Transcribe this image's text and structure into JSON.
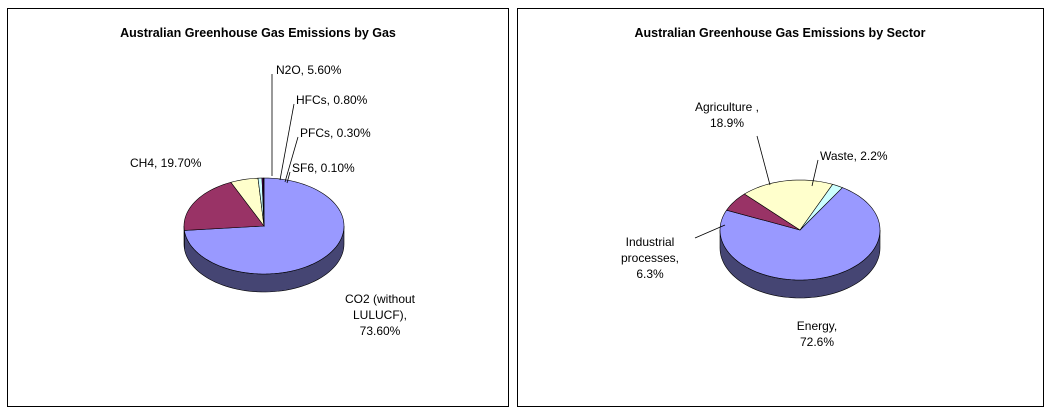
{
  "chart_data": [
    {
      "type": "pie",
      "title": "Australian Greenhouse Gas Emissions by Gas",
      "values": [
        73.6,
        19.7,
        5.6,
        0.8,
        0.3,
        0.1
      ],
      "value_labels": [
        "CO2 (without LULUCF), 73.60%",
        "CH4, 19.70%",
        "N2O, 5.60%",
        "HFCs, 0.80%",
        "PFCs, 0.30%",
        "SF6, 0.10%"
      ],
      "colors": [
        "#9999ff",
        "#993366",
        "#ffffcc",
        "#ccffff",
        "#660066",
        "#ff8080"
      ]
    },
    {
      "type": "pie",
      "title": "Australian Greenhouse Gas Emissions by Sector",
      "values": [
        72.6,
        6.3,
        18.9,
        2.2
      ],
      "value_labels": [
        "Energy, 72.6%",
        "Industrial processes, 6.3%",
        "Agriculture , 18.9%",
        "Waste, 2.2%"
      ],
      "colors": [
        "#9999ff",
        "#993366",
        "#ffffcc",
        "#ccffff"
      ]
    }
  ]
}
